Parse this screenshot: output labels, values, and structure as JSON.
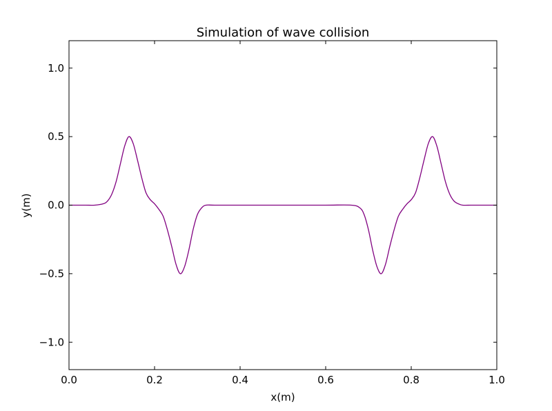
{
  "chart_data": {
    "type": "line",
    "title": "Simulation of wave collision",
    "xlabel": "x(m)",
    "ylabel": "y(m)",
    "xlim": [
      0.0,
      1.0
    ],
    "ylim": [
      -1.2,
      1.2
    ],
    "grid": false,
    "x_ticks": [
      0.0,
      0.2,
      0.4,
      0.6,
      0.8,
      1.0
    ],
    "x_tick_labels": [
      "0.0",
      "0.2",
      "0.4",
      "0.6",
      "0.8",
      "1.0"
    ],
    "y_ticks": [
      -1.0,
      -0.5,
      0.0,
      0.5,
      1.0
    ],
    "y_tick_labels": [
      "−1.0",
      "−0.5",
      "0.0",
      "0.5",
      "1.0"
    ],
    "line_color": "#800080",
    "series": [
      {
        "x": [
          0.0,
          0.02,
          0.04,
          0.06,
          0.08,
          0.09,
          0.1,
          0.11,
          0.12,
          0.13,
          0.14,
          0.15,
          0.16,
          0.17,
          0.18,
          0.19,
          0.2,
          0.21,
          0.22,
          0.23,
          0.24,
          0.25,
          0.26,
          0.27,
          0.28,
          0.29,
          0.3,
          0.31,
          0.32,
          0.34,
          0.4,
          0.5,
          0.6,
          0.66,
          0.68,
          0.69,
          0.7,
          0.71,
          0.72,
          0.73,
          0.74,
          0.75,
          0.76,
          0.77,
          0.78,
          0.79,
          0.8,
          0.81,
          0.82,
          0.83,
          0.84,
          0.85,
          0.86,
          0.87,
          0.88,
          0.89,
          0.9,
          0.91,
          0.92,
          0.94,
          0.96,
          0.98,
          1.0
        ],
        "y": [
          0.0,
          0.0,
          0.0,
          0.0,
          0.01,
          0.03,
          0.08,
          0.17,
          0.3,
          0.43,
          0.5,
          0.45,
          0.33,
          0.2,
          0.09,
          0.04,
          0.01,
          -0.03,
          -0.08,
          -0.18,
          -0.3,
          -0.43,
          -0.5,
          -0.45,
          -0.33,
          -0.18,
          -0.07,
          -0.02,
          0.0,
          0.0,
          0.0,
          0.0,
          0.0,
          0.0,
          -0.02,
          -0.07,
          -0.18,
          -0.33,
          -0.45,
          -0.5,
          -0.43,
          -0.3,
          -0.18,
          -0.08,
          -0.03,
          0.01,
          0.04,
          0.09,
          0.2,
          0.33,
          0.45,
          0.5,
          0.43,
          0.3,
          0.17,
          0.08,
          0.03,
          0.01,
          0.0,
          0.0,
          0.0,
          0.0,
          0.0
        ]
      }
    ]
  }
}
